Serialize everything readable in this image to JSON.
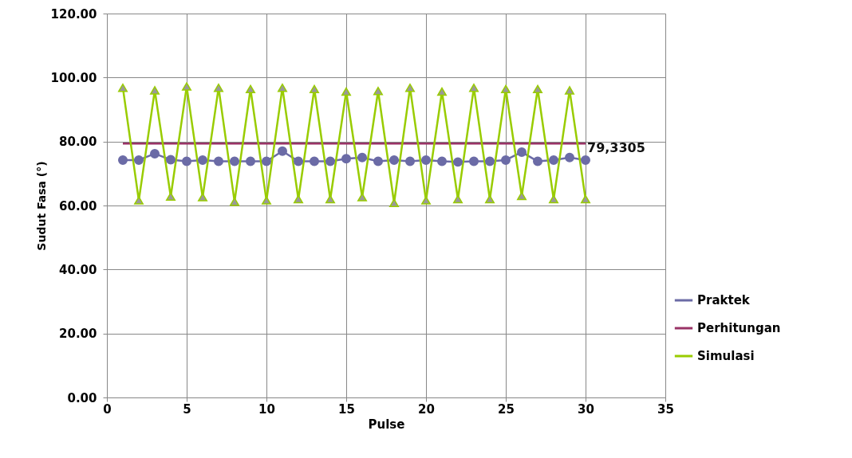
{
  "chart_data": {
    "type": "line",
    "xlabel": "Pulse",
    "ylabel": "Sudut Fasa (°)",
    "x": [
      1,
      2,
      3,
      4,
      5,
      6,
      7,
      8,
      9,
      10,
      11,
      12,
      13,
      14,
      15,
      16,
      17,
      18,
      19,
      20,
      21,
      22,
      23,
      24,
      25,
      26,
      27,
      28,
      29,
      30
    ],
    "series": [
      {
        "name": "Praktek",
        "color": "#6b6ba6",
        "marker": "circle",
        "values": [
          74.2,
          74.2,
          76.2,
          74.3,
          73.8,
          74.2,
          73.8,
          73.8,
          73.8,
          73.8,
          77.0,
          73.8,
          73.8,
          73.8,
          74.6,
          75.0,
          73.8,
          74.2,
          73.8,
          74.2,
          73.8,
          73.6,
          73.8,
          73.8,
          74.2,
          76.7,
          73.8,
          74.2,
          75.0,
          74.2
        ]
      },
      {
        "name": "Perhitungan",
        "color": "#993366",
        "marker": "none",
        "values": [
          79.3305,
          79.3305,
          79.3305,
          79.3305,
          79.3305,
          79.3305,
          79.3305,
          79.3305,
          79.3305,
          79.3305,
          79.3305,
          79.3305,
          79.3305,
          79.3305,
          79.3305,
          79.3305,
          79.3305,
          79.3305,
          79.3305,
          79.3305,
          79.3305,
          79.3305,
          79.3305,
          79.3305,
          79.3305,
          79.3305,
          79.3305,
          79.3305,
          79.3305,
          79.3305
        ]
      },
      {
        "name": "Simulasi",
        "color": "#99cc00",
        "marker": "triangle",
        "values": [
          96.8,
          61.6,
          96.0,
          62.8,
          97.2,
          62.6,
          96.8,
          61.2,
          96.4,
          61.6,
          96.8,
          62.0,
          96.4,
          62.0,
          95.6,
          62.6,
          95.8,
          60.8,
          96.8,
          61.6,
          95.6,
          62.0,
          96.8,
          62.0,
          96.4,
          63.0,
          96.4,
          62.0,
          96.0,
          62.0
        ]
      }
    ],
    "annotations": [
      {
        "text": "79,3305",
        "x": 30,
        "y": 79.3305
      }
    ],
    "xlim": [
      0,
      35
    ],
    "xticks": [
      0,
      5,
      10,
      15,
      20,
      25,
      30,
      35
    ],
    "ylim": [
      0,
      120
    ],
    "yticks": [
      {
        "value": 0,
        "label": "0.00"
      },
      {
        "value": 20,
        "label": "20.00"
      },
      {
        "value": 40,
        "label": "40.00"
      },
      {
        "value": 60,
        "label": "60.00"
      },
      {
        "value": 80,
        "label": "80.00"
      },
      {
        "value": 100,
        "label": "100.00"
      },
      {
        "value": 120,
        "label": "120.00"
      }
    ],
    "grid": true,
    "legend": "right"
  }
}
